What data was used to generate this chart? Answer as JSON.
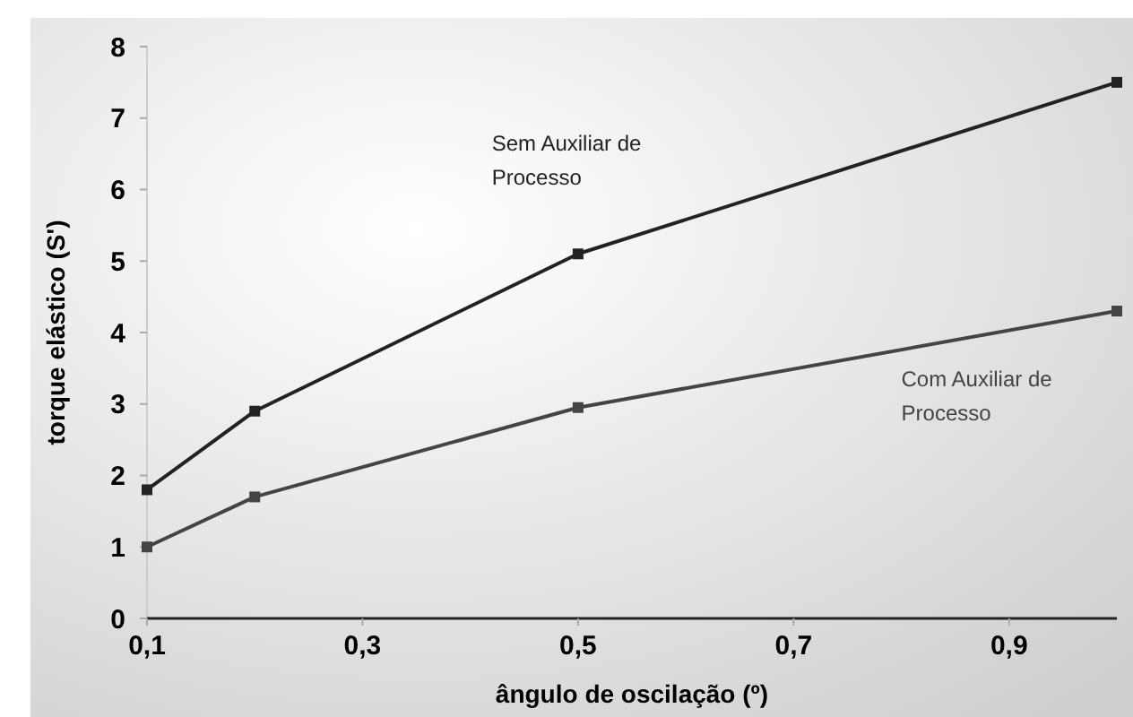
{
  "chart_data": {
    "type": "line",
    "xlabel": "ângulo de oscilação (º)",
    "ylabel": "torque elástico (S')",
    "x": [
      0.1,
      0.2,
      0.5,
      1.0
    ],
    "xlim": [
      0.1,
      1.0
    ],
    "xticks": [
      {
        "value": 0.1,
        "label": "0,1"
      },
      {
        "value": 0.3,
        "label": "0,3"
      },
      {
        "value": 0.5,
        "label": "0,5"
      },
      {
        "value": 0.7,
        "label": "0,7"
      },
      {
        "value": 0.9,
        "label": "0,9"
      }
    ],
    "ylim": [
      0,
      8
    ],
    "yticks": [
      0,
      1,
      2,
      3,
      4,
      5,
      6,
      7,
      8
    ],
    "marker": "square",
    "line_style": "solid",
    "grid": false,
    "series": [
      {
        "name": "Sem Auxiliar de Processo",
        "color": "#222222",
        "values": [
          1.8,
          2.9,
          5.1,
          7.5
        ]
      },
      {
        "name": "Com Auxiliar de Processo",
        "color": "#444444",
        "values": [
          1.0,
          1.7,
          2.95,
          4.3
        ]
      }
    ]
  }
}
